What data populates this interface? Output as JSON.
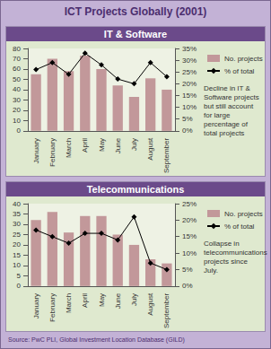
{
  "title": "ICT Projects Globally (2001)",
  "source": "Source: PwC PLI, Global Investment Location Database (GILD)",
  "chart_data": [
    {
      "type": "bar",
      "title": "IT & Software",
      "annotation": "Decline in IT & Software projects but still account for large percentage of total projects",
      "categories": [
        "January",
        "February",
        "March",
        "April",
        "May",
        "June",
        "July",
        "August",
        "September"
      ],
      "series": [
        {
          "name": "No. projects",
          "type": "bar",
          "color": "#c2989a",
          "values": [
            55,
            70,
            58,
            73,
            60,
            44,
            33,
            51,
            40
          ]
        },
        {
          "name": "% of total",
          "type": "line",
          "axis": "y2",
          "color": "#000000",
          "marker": "diamond",
          "values": [
            26,
            29,
            24,
            33,
            28,
            22,
            20,
            29,
            23
          ]
        }
      ],
      "ylim": [
        0,
        80
      ],
      "yticks": [
        0,
        10,
        20,
        30,
        40,
        50,
        60,
        70,
        80
      ],
      "y2lim": [
        0,
        35
      ],
      "y2ticks": [
        {
          "value": 0,
          "label": "0%"
        },
        {
          "value": 5,
          "label": "5%"
        },
        {
          "value": 10,
          "label": "10%"
        },
        {
          "value": 15,
          "label": "15%"
        },
        {
          "value": 20,
          "label": "20%"
        },
        {
          "value": 25,
          "label": "25%"
        },
        {
          "value": 30,
          "label": "30%"
        },
        {
          "value": 35,
          "label": "35%"
        }
      ],
      "grid": false,
      "legend": "right"
    },
    {
      "type": "bar",
      "title": "Telecommunications",
      "annotation": "Collapse in telecommunications projects since July.",
      "categories": [
        "January",
        "February",
        "March",
        "April",
        "May",
        "June",
        "July",
        "August",
        "September"
      ],
      "series": [
        {
          "name": "No. projects",
          "type": "bar",
          "color": "#c2989a",
          "values": [
            32,
            36,
            26,
            34,
            34,
            25,
            20,
            13,
            11
          ]
        },
        {
          "name": "% of total",
          "type": "line",
          "axis": "y2",
          "color": "#000000",
          "marker": "diamond",
          "values": [
            17,
            15,
            13,
            16,
            16,
            14,
            21,
            7,
            5
          ]
        }
      ],
      "ylim": [
        0,
        40
      ],
      "yticks": [
        0,
        5,
        10,
        15,
        20,
        25,
        30,
        35,
        40
      ],
      "y2lim": [
        0,
        25
      ],
      "y2ticks": [
        {
          "value": 0,
          "label": "0%"
        },
        {
          "value": 5,
          "label": "5%"
        },
        {
          "value": 10,
          "label": "10%"
        },
        {
          "value": 15,
          "label": "15%"
        },
        {
          "value": 20,
          "label": "20%"
        },
        {
          "value": 25,
          "label": "25%"
        }
      ],
      "grid": false,
      "legend": "right"
    }
  ]
}
